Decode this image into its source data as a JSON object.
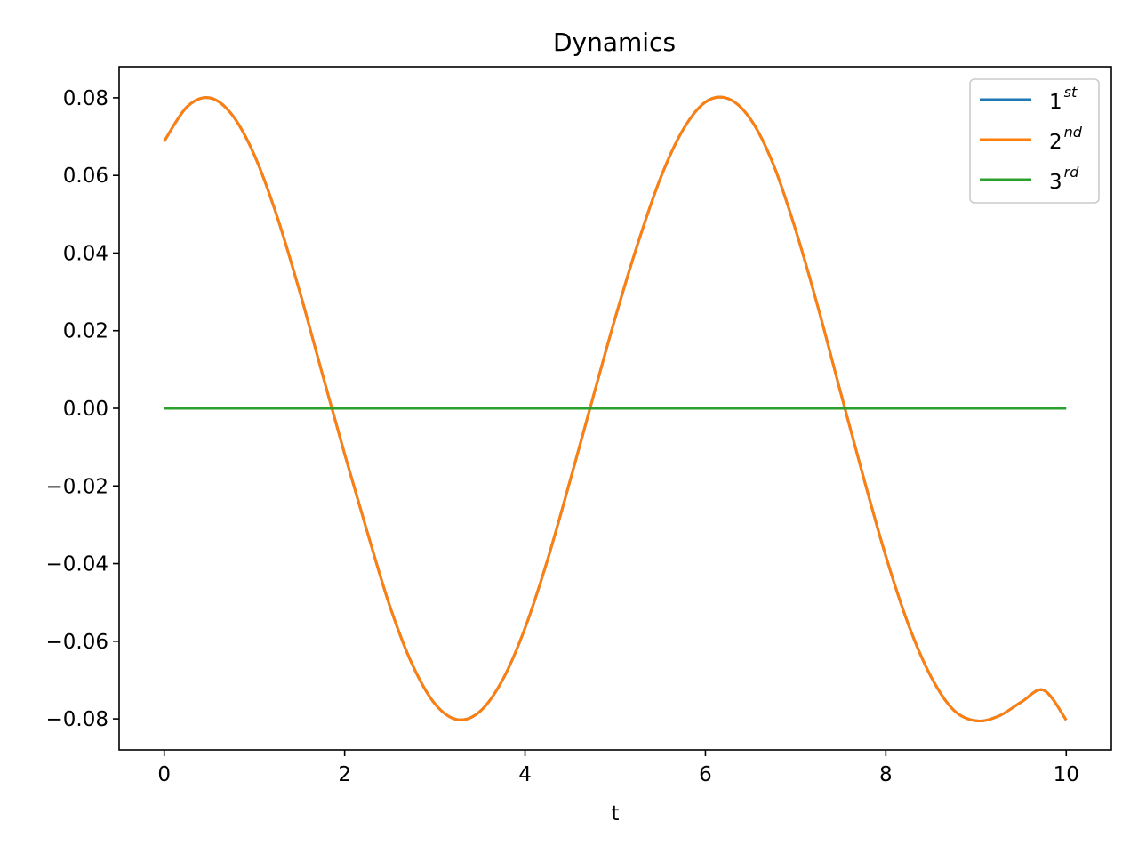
{
  "chart_data": {
    "type": "line",
    "title": "Dynamics",
    "xlabel": "t",
    "ylabel": "",
    "xlim": [
      -0.5,
      10.5
    ],
    "ylim": [
      -0.088,
      0.088
    ],
    "xticks": [
      0,
      2,
      4,
      6,
      8,
      10
    ],
    "xtick_labels": [
      "0",
      "2",
      "4",
      "6",
      "8",
      "10"
    ],
    "yticks": [
      -0.08,
      -0.06,
      -0.04,
      -0.02,
      0.0,
      0.02,
      0.04,
      0.06,
      0.08
    ],
    "ytick_labels": [
      "−0.08",
      "−0.06",
      "−0.04",
      "−0.02",
      "0.00",
      "0.02",
      "0.04",
      "0.06",
      "0.08"
    ],
    "grid": false,
    "legend_position": "top-right",
    "series": [
      {
        "base": "1",
        "sup": "st",
        "color": "#1f77b4",
        "x": [
          0,
          0.25,
          0.5,
          0.75,
          1,
          1.25,
          1.5,
          1.75,
          2,
          2.25,
          2.5,
          2.75,
          3,
          3.25,
          3.5,
          3.75,
          4,
          4.25,
          4.5,
          4.75,
          5,
          5.25,
          5.5,
          5.75,
          6,
          6.25,
          6.5,
          6.75,
          7,
          7.25,
          7.5,
          7.75,
          8,
          8.25,
          8.5,
          8.75,
          9,
          9.25,
          9.5,
          9.75,
          10
        ],
        "y": [
          0.0688,
          0.0776,
          0.08,
          0.0757,
          0.0652,
          0.0495,
          0.0302,
          0.0091,
          -0.0118,
          -0.0318,
          -0.0509,
          -0.066,
          -0.0761,
          -0.0802,
          -0.0781,
          -0.07,
          -0.0566,
          -0.039,
          -0.0186,
          0.0025,
          0.0233,
          0.0424,
          0.0592,
          0.0717,
          0.0789,
          0.0798,
          0.0745,
          0.063,
          0.046,
          0.0259,
          0.004,
          -0.0176,
          -0.0381,
          -0.0557,
          -0.0691,
          -0.0777,
          -0.0805,
          -0.0793,
          -0.0757,
          -0.0726,
          -0.0803
        ]
      },
      {
        "base": "2",
        "sup": "nd",
        "color": "#ff7f0e",
        "x": [
          0,
          0.25,
          0.5,
          0.75,
          1,
          1.25,
          1.5,
          1.75,
          2,
          2.25,
          2.5,
          2.75,
          3,
          3.25,
          3.5,
          3.75,
          4,
          4.25,
          4.5,
          4.75,
          5,
          5.25,
          5.5,
          5.75,
          6,
          6.25,
          6.5,
          6.75,
          7,
          7.25,
          7.5,
          7.75,
          8,
          8.25,
          8.5,
          8.75,
          9,
          9.25,
          9.5,
          9.75,
          10
        ],
        "y": [
          0.0688,
          0.0776,
          0.08,
          0.0757,
          0.0652,
          0.0495,
          0.0302,
          0.0091,
          -0.0118,
          -0.0318,
          -0.0509,
          -0.066,
          -0.0761,
          -0.0802,
          -0.0781,
          -0.07,
          -0.0566,
          -0.039,
          -0.0186,
          0.0025,
          0.0233,
          0.0424,
          0.0592,
          0.0717,
          0.0789,
          0.0798,
          0.0745,
          0.063,
          0.046,
          0.0259,
          0.004,
          -0.0176,
          -0.0381,
          -0.0557,
          -0.0691,
          -0.0777,
          -0.0805,
          -0.0793,
          -0.0757,
          -0.0726,
          -0.0803
        ]
      },
      {
        "base": "3",
        "sup": "rd",
        "color": "#2ca02c",
        "x": [
          0,
          10
        ],
        "y": [
          0,
          0
        ]
      }
    ]
  }
}
